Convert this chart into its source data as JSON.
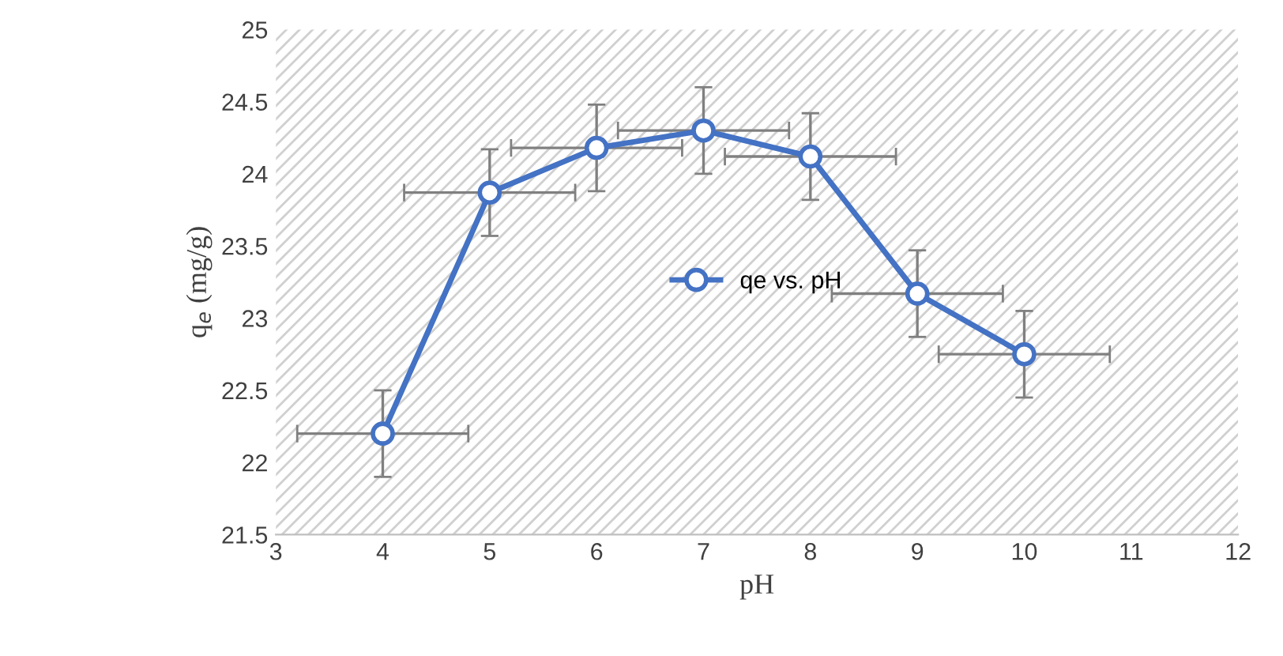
{
  "chart_data": {
    "type": "line",
    "xlabel": "pH",
    "ylabel": "q$_{e}$ (mg/g)",
    "series": [
      {
        "name": "qe vs. pH",
        "color": "#4472c4",
        "x": [
          4,
          5,
          6,
          7,
          8,
          9,
          10
        ],
        "values": [
          22.2,
          23.87,
          24.18,
          24.3,
          24.12,
          23.17,
          22.75
        ],
        "errors": [
          0.3,
          0.3,
          0.3,
          0.3,
          0.3,
          0.3,
          0.3
        ],
        "xerrors": [
          0.8,
          0.8,
          0.8,
          0.8,
          0.8,
          0.8,
          0.8
        ]
      }
    ],
    "xlim": [
      3,
      12
    ],
    "xticks": [
      3,
      4,
      5,
      6,
      7,
      8,
      9,
      10,
      11,
      12
    ],
    "ylim": [
      21.5,
      25
    ],
    "yticks": [
      21.5,
      22,
      22.5,
      23,
      23.5,
      24,
      24.5,
      25
    ],
    "grid": false,
    "legend": "center",
    "marker": "circle",
    "line_style": "solid"
  }
}
